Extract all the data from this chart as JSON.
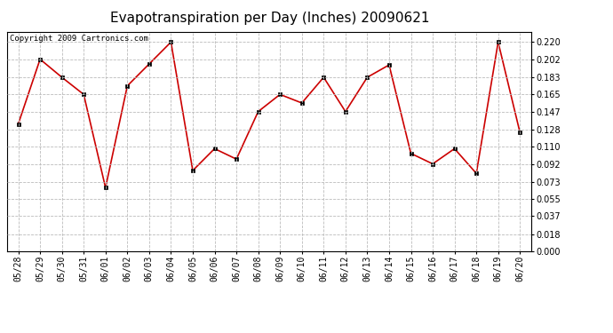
{
  "title": "Evapotranspiration per Day (Inches) 20090621",
  "copyright_text": "Copyright 2009 Cartronics.com",
  "dates": [
    "05/28",
    "05/29",
    "05/30",
    "05/31",
    "06/01",
    "06/02",
    "06/03",
    "06/04",
    "06/05",
    "06/06",
    "06/07",
    "06/08",
    "06/09",
    "06/10",
    "06/11",
    "06/12",
    "06/13",
    "06/14",
    "06/15",
    "06/16",
    "06/17",
    "06/18",
    "06/19",
    "06/20"
  ],
  "values": [
    0.134,
    0.202,
    0.183,
    0.165,
    0.067,
    0.174,
    0.197,
    0.22,
    0.085,
    0.108,
    0.097,
    0.147,
    0.165,
    0.156,
    0.183,
    0.147,
    0.183,
    0.196,
    0.103,
    0.092,
    0.108,
    0.082,
    0.22,
    0.125
  ],
  "line_color": "#cc0000",
  "marker_color": "#cc0000",
  "bg_color": "#ffffff",
  "plot_bg_color": "#ffffff",
  "grid_color": "#bbbbbb",
  "yticks": [
    0.0,
    0.018,
    0.037,
    0.055,
    0.073,
    0.092,
    0.11,
    0.128,
    0.147,
    0.165,
    0.183,
    0.202,
    0.22
  ],
  "ylim": [
    0.0,
    0.231
  ],
  "title_fontsize": 11,
  "tick_fontsize": 7,
  "copyright_fontsize": 6.5
}
